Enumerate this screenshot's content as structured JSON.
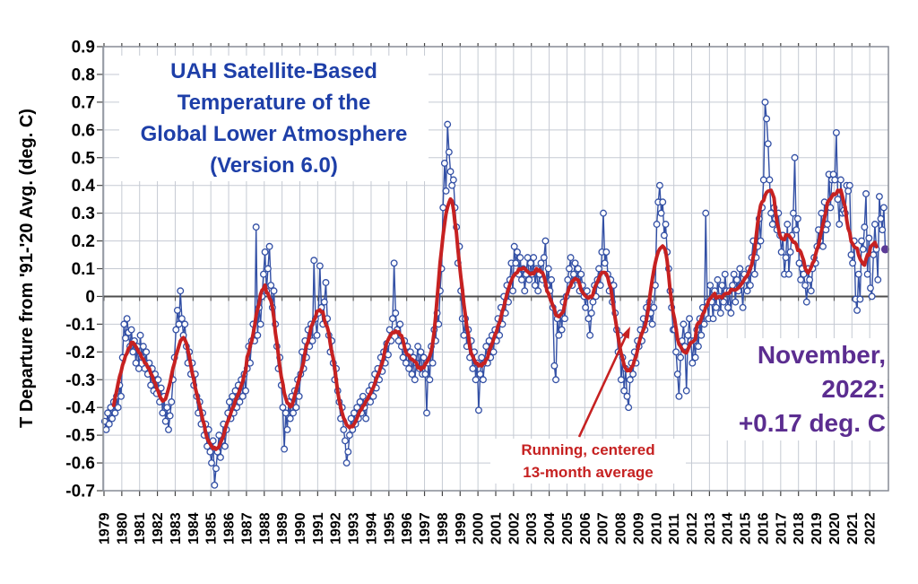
{
  "chart_data": {
    "type": "line",
    "title_lines": [
      "UAH Satellite-Based",
      "Temperature of the",
      "Global Lower Atmosphere",
      "(Version 6.0)"
    ],
    "ylabel": "T Departure from '91-'20 Avg. (deg. C)",
    "ylim": [
      -0.7,
      0.9
    ],
    "ytick_step": 0.1,
    "ytick_labels": [
      "0.9",
      "0.8",
      "0.7",
      "0.6",
      "0.5",
      "0.4",
      "0.3",
      "0.2",
      "0.1",
      "0",
      "-0.1",
      "-0.2",
      "-0.3",
      "-0.4",
      "-0.5",
      "-0.6",
      "-0.7"
    ],
    "x_tick_labels": [
      "1979",
      "1980",
      "1981",
      "1982",
      "1983",
      "1984",
      "1985",
      "1986",
      "1987",
      "1988",
      "1989",
      "1990",
      "1991",
      "1992",
      "1993",
      "1994",
      "1995",
      "1996",
      "1997",
      "1998",
      "1999",
      "2000",
      "2001",
      "2002",
      "2003",
      "2004",
      "2005",
      "2006",
      "2007",
      "2008",
      "2009",
      "2010",
      "2011",
      "2012",
      "2013",
      "2014",
      "2015",
      "2016",
      "2017",
      "2018",
      "2019",
      "2020",
      "2021",
      "2022"
    ],
    "grid": true,
    "legend": "none",
    "series": [
      {
        "name": "Monthly global lower-atmosphere temperature anomaly",
        "color": "#3350a5",
        "marker": "open-circle",
        "start_year": 1979,
        "start_month": 1,
        "end_label": "November 2022",
        "values": [
          -0.45,
          -0.48,
          -0.42,
          -0.46,
          -0.4,
          -0.44,
          -0.38,
          -0.42,
          -0.36,
          -0.4,
          -0.32,
          -0.36,
          -0.22,
          -0.1,
          -0.15,
          -0.08,
          -0.13,
          -0.18,
          -0.12,
          -0.2,
          -0.16,
          -0.24,
          -0.18,
          -0.26,
          -0.14,
          -0.22,
          -0.18,
          -0.26,
          -0.2,
          -0.28,
          -0.24,
          -0.32,
          -0.26,
          -0.34,
          -0.28,
          -0.35,
          -0.3,
          -0.38,
          -0.33,
          -0.42,
          -0.36,
          -0.45,
          -0.4,
          -0.48,
          -0.43,
          -0.38,
          -0.3,
          -0.22,
          -0.12,
          -0.05,
          -0.1,
          0.02,
          -0.08,
          -0.14,
          -0.1,
          -0.18,
          -0.24,
          -0.2,
          -0.28,
          -0.24,
          -0.32,
          -0.28,
          -0.36,
          -0.42,
          -0.38,
          -0.46,
          -0.42,
          -0.5,
          -0.46,
          -0.54,
          -0.48,
          -0.56,
          -0.6,
          -0.52,
          -0.68,
          -0.62,
          -0.56,
          -0.5,
          -0.58,
          -0.52,
          -0.46,
          -0.54,
          -0.48,
          -0.42,
          -0.38,
          -0.44,
          -0.36,
          -0.42,
          -0.34,
          -0.4,
          -0.32,
          -0.38,
          -0.3,
          -0.36,
          -0.28,
          -0.34,
          -0.26,
          -0.18,
          -0.24,
          -0.16,
          -0.1,
          -0.16,
          0.25,
          -0.14,
          -0.04,
          -0.1,
          0.0,
          0.08,
          0.16,
          0.02,
          0.1,
          0.18,
          0.04,
          -0.04,
          0.02,
          -0.1,
          -0.18,
          -0.26,
          -0.22,
          -0.32,
          -0.4,
          -0.55,
          -0.42,
          -0.48,
          -0.38,
          -0.44,
          -0.36,
          -0.42,
          -0.34,
          -0.4,
          -0.3,
          -0.36,
          -0.28,
          -0.2,
          -0.26,
          -0.16,
          -0.22,
          -0.12,
          -0.18,
          -0.1,
          -0.16,
          0.13,
          -0.08,
          -0.14,
          -0.06,
          0.11,
          -0.04,
          -0.1,
          -0.02,
          0.05,
          -0.08,
          -0.14,
          -0.2,
          -0.16,
          -0.24,
          -0.3,
          -0.26,
          -0.34,
          -0.38,
          -0.44,
          -0.4,
          -0.48,
          -0.52,
          -0.6,
          -0.56,
          -0.5,
          -0.44,
          -0.48,
          -0.42,
          -0.46,
          -0.4,
          -0.44,
          -0.38,
          -0.42,
          -0.36,
          -0.4,
          -0.44,
          -0.38,
          -0.34,
          -0.38,
          -0.32,
          -0.36,
          -0.28,
          -0.33,
          -0.26,
          -0.3,
          -0.22,
          -0.27,
          -0.2,
          -0.24,
          -0.17,
          -0.21,
          -0.12,
          -0.16,
          -0.08,
          0.12,
          -0.06,
          -0.12,
          -0.16,
          -0.1,
          -0.18,
          -0.22,
          -0.16,
          -0.24,
          -0.18,
          -0.26,
          -0.2,
          -0.28,
          -0.22,
          -0.3,
          -0.24,
          -0.18,
          -0.26,
          -0.2,
          -0.28,
          -0.22,
          -0.28,
          -0.42,
          -0.24,
          -0.3,
          -0.18,
          -0.24,
          -0.12,
          -0.16,
          -0.06,
          -0.1,
          0.02,
          0.1,
          0.32,
          0.48,
          0.38,
          0.62,
          0.52,
          0.45,
          0.4,
          0.42,
          0.32,
          0.25,
          0.12,
          0.18,
          0.02,
          -0.08,
          -0.14,
          -0.08,
          -0.18,
          -0.12,
          -0.22,
          -0.16,
          -0.26,
          -0.2,
          -0.3,
          -0.24,
          -0.41,
          -0.28,
          -0.22,
          -0.3,
          -0.24,
          -0.18,
          -0.24,
          -0.16,
          -0.22,
          -0.14,
          -0.2,
          -0.12,
          -0.16,
          -0.08,
          -0.14,
          -0.04,
          -0.1,
          0.0,
          -0.06,
          0.04,
          -0.02,
          0.06,
          0.12,
          0.02,
          0.18,
          0.12,
          0.16,
          0.08,
          0.14,
          0.06,
          0.1,
          0.02,
          0.08,
          0.14,
          0.06,
          0.12,
          0.08,
          0.14,
          0.04,
          0.1,
          0.02,
          0.08,
          0.12,
          0.06,
          0.14,
          0.2,
          0.04,
          0.1,
          0.02,
          0.06,
          -0.04,
          -0.25,
          -0.3,
          -0.08,
          -0.14,
          -0.06,
          -0.12,
          -0.02,
          -0.08,
          0.0,
          0.06,
          0.1,
          0.14,
          0.04,
          0.08,
          0.12,
          0.06,
          0.1,
          0.02,
          0.08,
          0.04,
          0.0,
          -0.04,
          0.02,
          -0.08,
          -0.14,
          -0.06,
          -0.02,
          0.04,
          0.0,
          0.06,
          0.1,
          0.04,
          0.16,
          0.3,
          0.12,
          0.16,
          0.08,
          0.02,
          0.06,
          -0.02,
          0.04,
          -0.06,
          -0.12,
          -0.2,
          -0.14,
          -0.3,
          -0.22,
          -0.34,
          -0.26,
          -0.36,
          -0.4,
          -0.3,
          -0.24,
          -0.28,
          -0.2,
          -0.24,
          -0.16,
          -0.18,
          -0.12,
          -0.16,
          -0.08,
          -0.12,
          -0.04,
          -0.08,
          -0.02,
          -0.06,
          -0.1,
          -0.04,
          0.04,
          0.26,
          0.34,
          0.4,
          0.3,
          0.34,
          0.22,
          0.26,
          0.16,
          0.1,
          0.02,
          -0.04,
          -0.12,
          -0.12,
          -0.2,
          -0.28,
          -0.36,
          -0.22,
          -0.16,
          -0.1,
          -0.18,
          -0.34,
          -0.14,
          -0.08,
          -0.16,
          -0.24,
          -0.16,
          -0.22,
          -0.12,
          -0.18,
          -0.08,
          -0.14,
          -0.04,
          -0.1,
          0.3,
          -0.02,
          -0.08,
          0.04,
          -0.02,
          -0.08,
          0.02,
          -0.04,
          0.06,
          0.0,
          -0.06,
          0.04,
          -0.02,
          0.08,
          0.02,
          -0.04,
          0.02,
          -0.06,
          0.04,
          0.08,
          -0.02,
          0.06,
          0.02,
          0.1,
          0.04,
          -0.04,
          0.08,
          0.06,
          0.02,
          0.1,
          0.04,
          0.14,
          0.2,
          0.08,
          0.14,
          0.18,
          0.28,
          0.2,
          0.32,
          0.42,
          0.7,
          0.64,
          0.55,
          0.42,
          0.3,
          0.26,
          0.32,
          0.28,
          0.24,
          0.3,
          0.22,
          0.16,
          0.22,
          0.08,
          0.14,
          0.26,
          0.08,
          0.16,
          0.22,
          0.3,
          0.5,
          0.24,
          0.28,
          0.12,
          0.06,
          0.1,
          0.08,
          0.04,
          -0.02,
          0.1,
          0.06,
          0.02,
          0.1,
          0.14,
          0.12,
          0.18,
          0.24,
          0.2,
          0.3,
          0.18,
          0.34,
          0.24,
          0.26,
          0.44,
          0.32,
          0.42,
          0.44,
          0.42,
          0.59,
          0.35,
          0.26,
          0.42,
          0.3,
          0.31,
          0.3,
          0.4,
          0.38,
          0.4,
          0.15,
          0.12,
          0.2,
          -0.01,
          -0.05,
          0.08,
          -0.01,
          0.2,
          0.17,
          0.25,
          0.37,
          0.08,
          0.21,
          0.03,
          0.0,
          0.15,
          0.26,
          0.17,
          0.06,
          0.36,
          0.28,
          0.24,
          0.32,
          0.17
        ]
      },
      {
        "name": "Running, centered 13-month average",
        "color": "#c62121",
        "derived": "13-month centered moving average computed from the monthly values"
      }
    ],
    "last_point": {
      "label": "November, 2022",
      "value": 0.17,
      "color": "#5b3a96"
    },
    "annotations": {
      "smoothing_label_lines": [
        "Running, centered",
        "13-month average"
      ],
      "current_value_lines": [
        "November,",
        "2022:",
        "+0.17 deg. C"
      ]
    }
  },
  "colors": {
    "title_text": "#1e3fa8",
    "monthly_line": "#3350a5",
    "marker_fill": "#ffffff",
    "smoothed_line": "#c62121",
    "annotation_red": "#c62121",
    "callout_purple": "#5b2d90",
    "gridline": "#c5cad3",
    "zero_axis": "#4d4d4d",
    "frame": "#878c95",
    "background": "#ffffff"
  }
}
